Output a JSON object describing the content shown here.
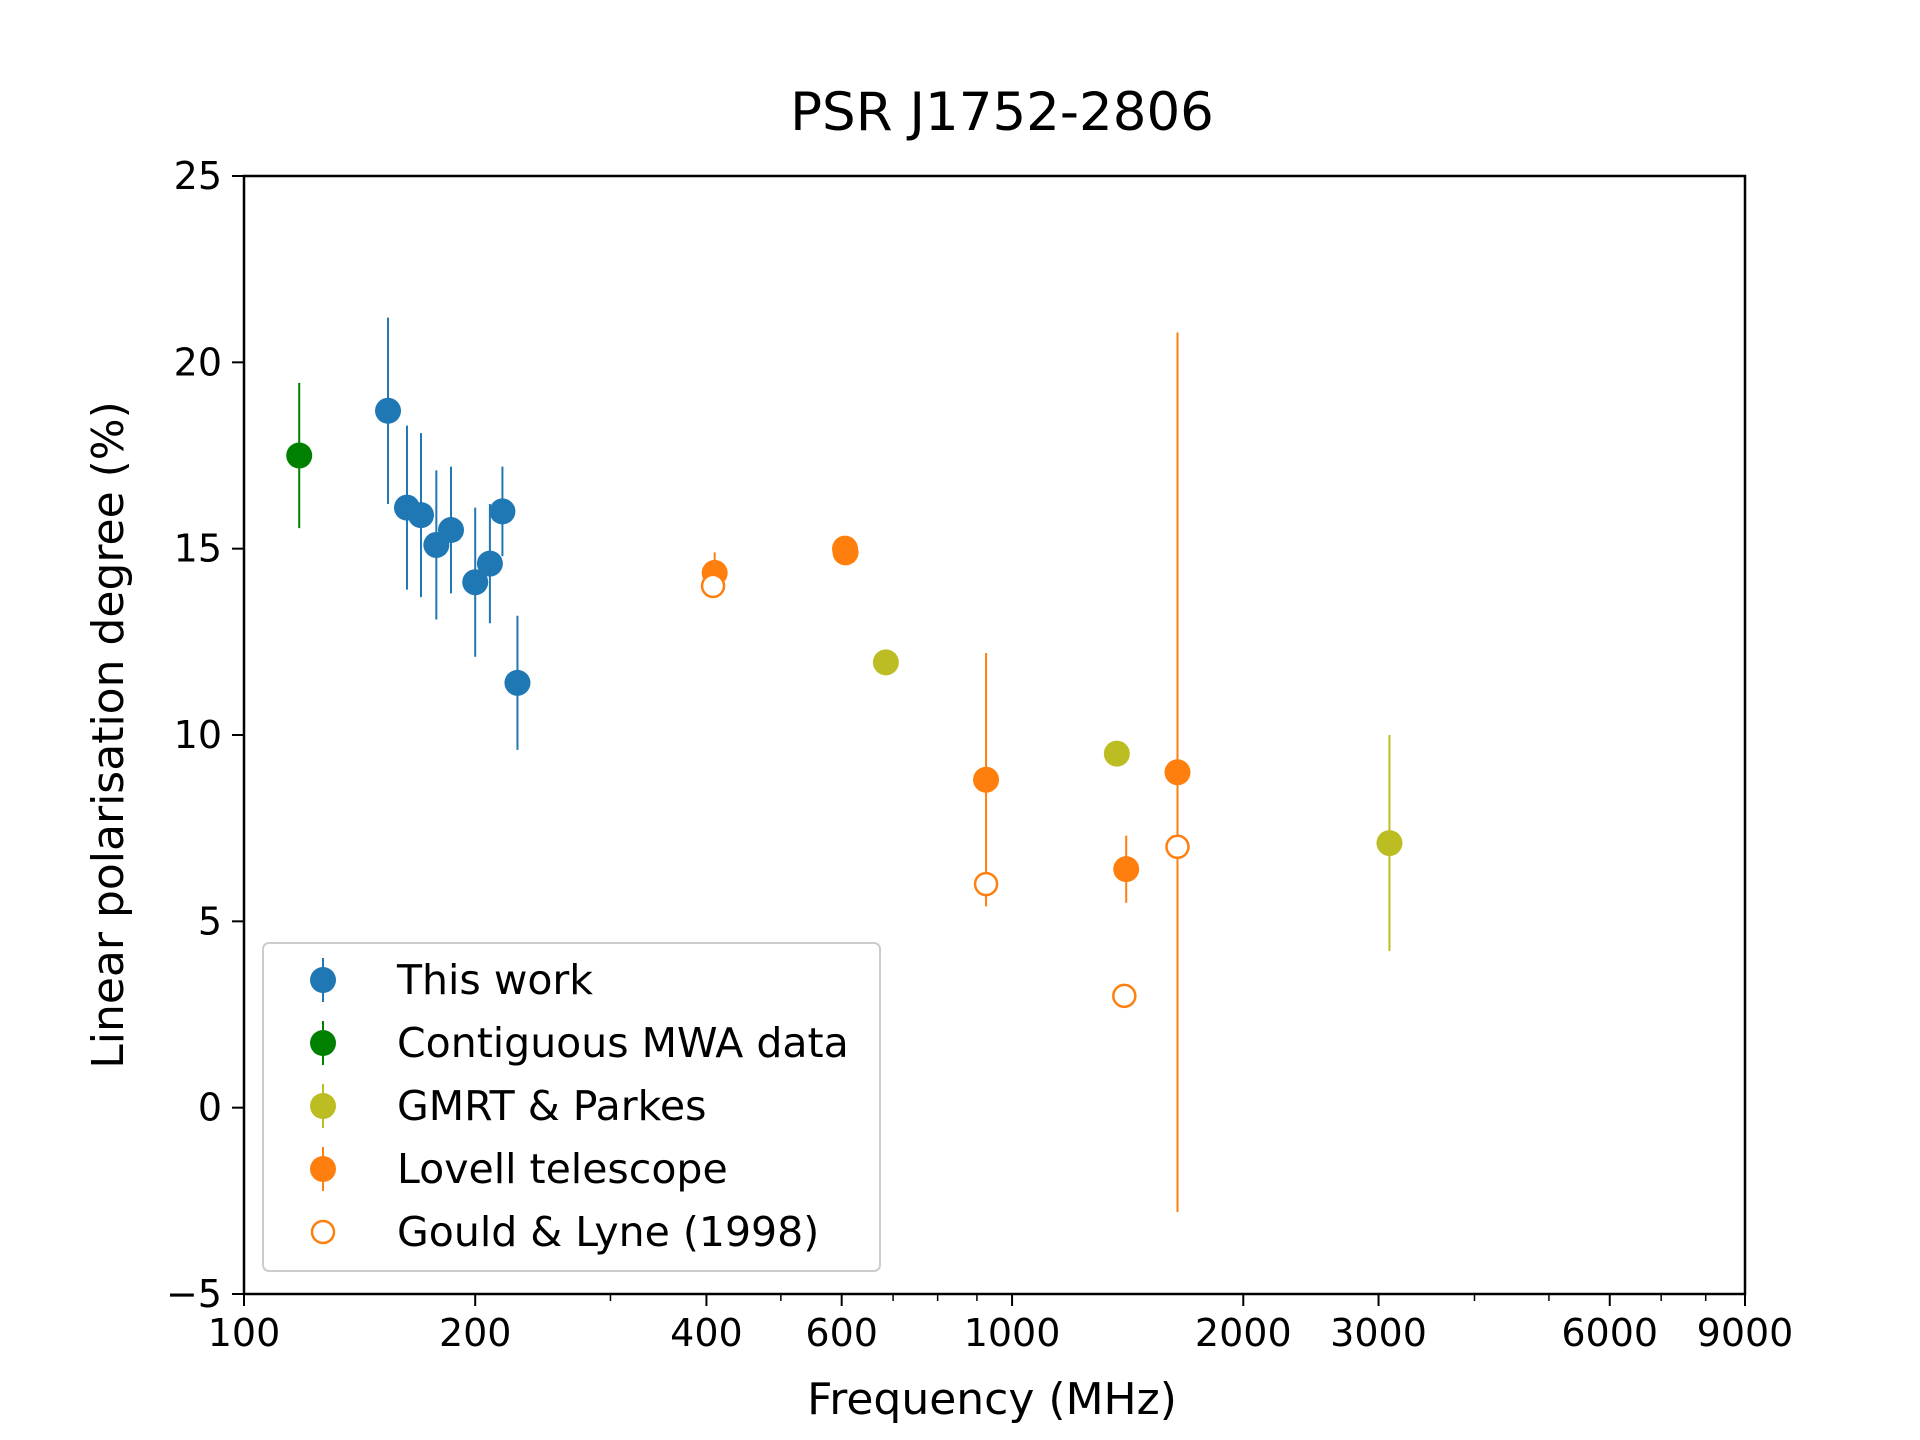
{
  "chart_data": {
    "type": "scatter",
    "title": "PSR J1752-2806",
    "xlabel": "Frequency (MHz)",
    "ylabel": "Linear polarisation degree (%)",
    "xscale": "log",
    "xlim": [
      100,
      9000
    ],
    "ylim": [
      -5,
      25
    ],
    "grid": false,
    "legend_position": "lower-left",
    "x_ticks": [
      100,
      200,
      400,
      600,
      1000,
      2000,
      3000,
      6000,
      9000
    ],
    "x_tick_labels": [
      "100",
      "200",
      "400",
      "600",
      "1000",
      "2000",
      "3000",
      "6000",
      "9000"
    ],
    "y_ticks": [
      -5,
      0,
      5,
      10,
      15,
      20,
      25
    ],
    "y_tick_labels": [
      "−5",
      "0",
      "5",
      "10",
      "15",
      "20",
      "25"
    ],
    "series": [
      {
        "name": "This work",
        "color": "#1f77b4",
        "marker": "filled",
        "points": [
          {
            "x": 154,
            "y": 18.7,
            "err": 2.5
          },
          {
            "x": 163,
            "y": 16.1,
            "err": 2.2
          },
          {
            "x": 170,
            "y": 15.9,
            "err": 2.2
          },
          {
            "x": 178,
            "y": 15.1,
            "err": 2.0
          },
          {
            "x": 186,
            "y": 15.5,
            "err": 1.7
          },
          {
            "x": 200,
            "y": 14.1,
            "err": 2.0
          },
          {
            "x": 209,
            "y": 14.6,
            "err": 1.6
          },
          {
            "x": 217,
            "y": 16.0,
            "err": 1.2
          },
          {
            "x": 227,
            "y": 11.4,
            "err": 1.8
          }
        ]
      },
      {
        "name": "Contiguous MWA data",
        "color": "#008000",
        "marker": "filled",
        "points": [
          {
            "x": 118,
            "y": 17.5,
            "err": 1.95
          }
        ]
      },
      {
        "name": "GMRT & Parkes",
        "color": "#bcbd22",
        "marker": "filled",
        "points": [
          {
            "x": 685,
            "y": 11.95,
            "err": 0
          },
          {
            "x": 1369,
            "y": 9.5,
            "err": 0
          },
          {
            "x": 3100,
            "y": 7.1,
            "err": 2.9
          }
        ]
      },
      {
        "name": "Lovell telescope",
        "color": "#ff7f0e",
        "marker": "filled",
        "points": [
          {
            "x": 410,
            "y": 14.35,
            "err": 0.55
          },
          {
            "x": 606,
            "y": 15.0,
            "err": 0
          },
          {
            "x": 607,
            "y": 14.9,
            "err": 0
          },
          {
            "x": 925,
            "y": 8.8,
            "err": 3.4
          },
          {
            "x": 1408,
            "y": 6.4,
            "err": 0.9
          },
          {
            "x": 1642,
            "y": 9.0,
            "err": 11.8
          }
        ]
      },
      {
        "name": "Gould & Lyne (1998)",
        "color": "#ff7f0e",
        "marker": "open",
        "points": [
          {
            "x": 408,
            "y": 14.0,
            "err": 0
          },
          {
            "x": 925,
            "y": 6.0,
            "err": 0
          },
          {
            "x": 1400,
            "y": 3.0,
            "err": 0
          },
          {
            "x": 1642,
            "y": 7.0,
            "err": 0
          }
        ]
      }
    ]
  }
}
